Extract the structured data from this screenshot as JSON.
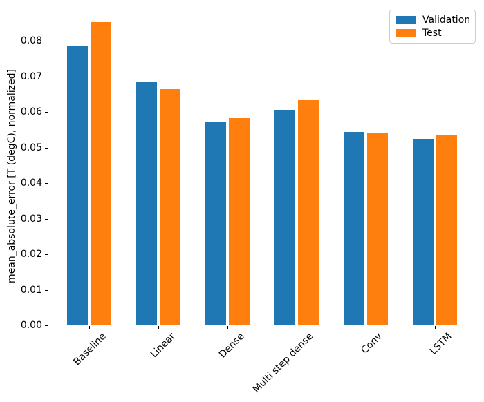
{
  "chart_data": {
    "type": "bar",
    "title": "",
    "xlabel": "",
    "ylabel": "mean_absolute_error [T (degC), normalized]",
    "categories": [
      "Baseline",
      "Linear",
      "Dense",
      "Multi step dense",
      "Conv",
      "LSTM"
    ],
    "series": [
      {
        "name": "Validation",
        "color": "#1f77b4",
        "values": [
          0.0786,
          0.0687,
          0.0572,
          0.0607,
          0.0545,
          0.0524
        ]
      },
      {
        "name": "Test",
        "color": "#ff7f0e",
        "values": [
          0.0854,
          0.0665,
          0.0583,
          0.0634,
          0.0543,
          0.0534
        ]
      }
    ],
    "ylim": [
      0,
      0.09
    ],
    "ytick_labels": [
      "0.00",
      "0.01",
      "0.02",
      "0.03",
      "0.04",
      "0.05",
      "0.06",
      "0.07",
      "0.08"
    ],
    "x_tick_rotation_deg": 45,
    "bar_width_units": 0.3,
    "bar_offset_units": 0.17,
    "grid": false,
    "legend": {
      "position": "upper-right",
      "frame_color": "#cccccc",
      "background": "#ffffff"
    },
    "axis_color": "#000000",
    "text_color": "#000000",
    "background": "#ffffff"
  }
}
